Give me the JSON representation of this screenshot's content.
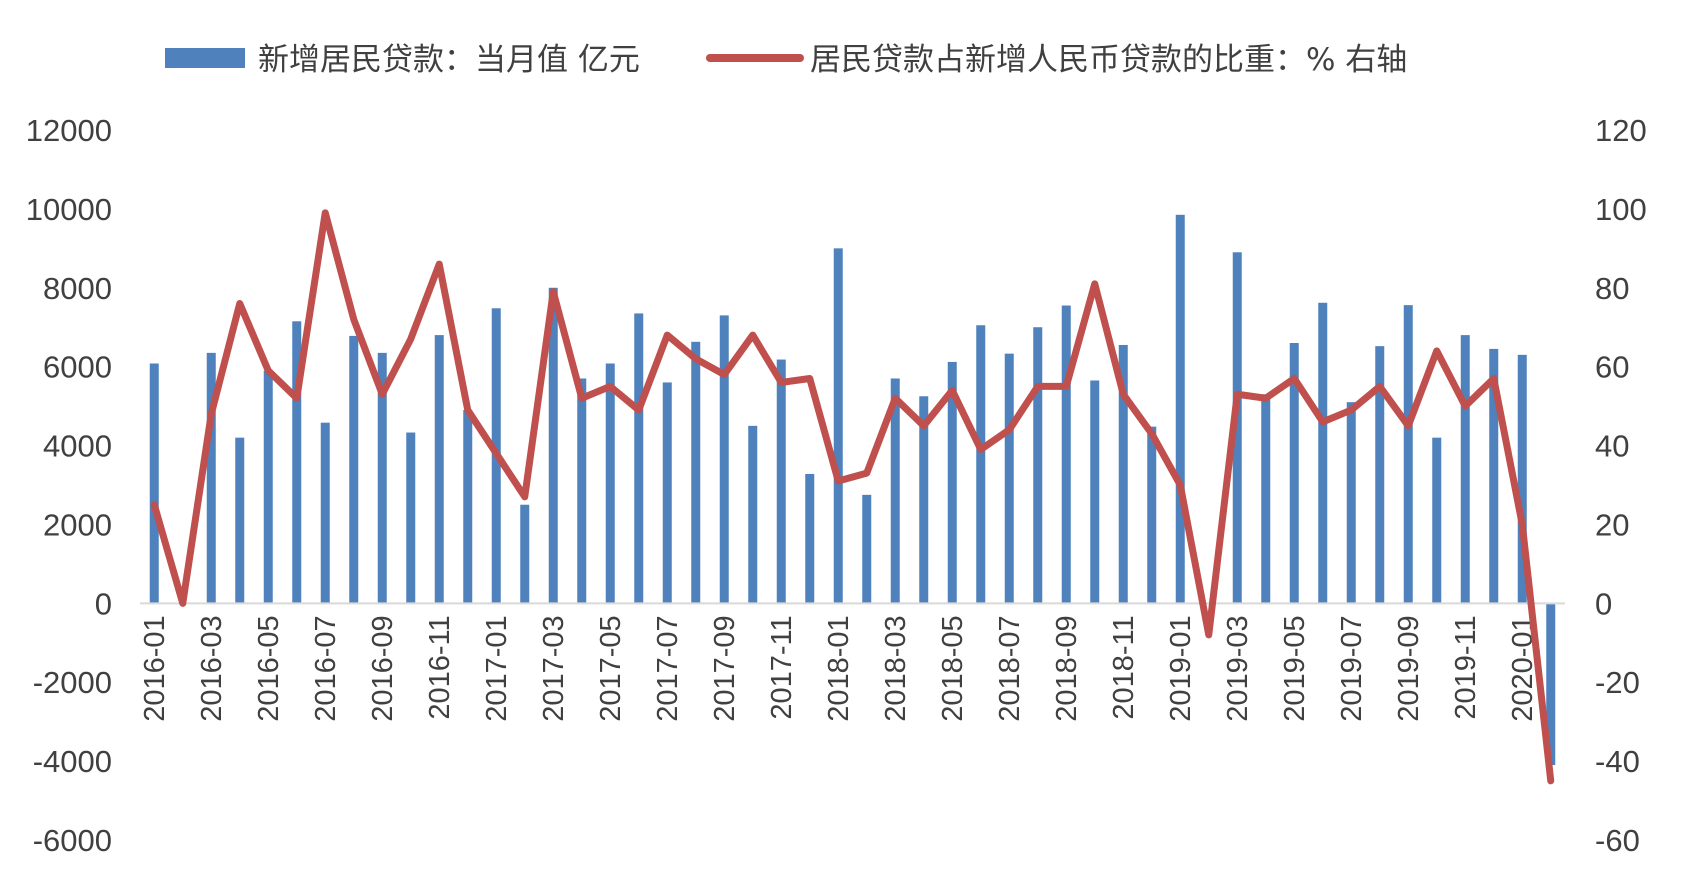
{
  "chart_data": {
    "type": "bar",
    "title": "",
    "xlabel": "",
    "ylabel": "",
    "ylim": [
      -6000,
      12000
    ],
    "y2lim": [
      -60,
      120
    ],
    "y_ticks": [
      "12000",
      "10000",
      "8000",
      "6000",
      "4000",
      "2000",
      "0",
      "-2000",
      "-4000",
      "-6000"
    ],
    "y2_ticks": [
      "120",
      "100",
      "80",
      "60",
      "40",
      "20",
      "0",
      "-20",
      "-40",
      "-60"
    ],
    "legend_position": "top",
    "grid": false,
    "categories": [
      "2016-01",
      "2016-02",
      "2016-03",
      "2016-04",
      "2016-05",
      "2016-06",
      "2016-07",
      "2016-08",
      "2016-09",
      "2016-10",
      "2016-11",
      "2016-12",
      "2017-01",
      "2017-02",
      "2017-03",
      "2017-04",
      "2017-05",
      "2017-06",
      "2017-07",
      "2017-08",
      "2017-09",
      "2017-10",
      "2017-11",
      "2017-12",
      "2018-01",
      "2018-02",
      "2018-03",
      "2018-04",
      "2018-05",
      "2018-06",
      "2018-07",
      "2018-08",
      "2018-09",
      "2018-10",
      "2018-11",
      "2018-12",
      "2019-01",
      "2019-02",
      "2019-03",
      "2019-04",
      "2019-05",
      "2019-06",
      "2019-07",
      "2019-08",
      "2019-09",
      "2019-10",
      "2019-11",
      "2019-12",
      "2020-01",
      "2020-02"
    ],
    "x_tick_labels": [
      "2016-01",
      "2016-03",
      "2016-05",
      "2016-07",
      "2016-09",
      "2016-11",
      "2017-01",
      "2017-03",
      "2017-05",
      "2017-07",
      "2017-09",
      "2017-11",
      "2018-01",
      "2018-03",
      "2018-05",
      "2018-07",
      "2018-09",
      "2018-11",
      "2019-01",
      "2019-03",
      "2019-05",
      "2019-07",
      "2019-09",
      "2019-11",
      "2020-01"
    ],
    "series": [
      {
        "name": "新增居民贷款：当月值 亿元",
        "type": "bar",
        "axis": "left",
        "color": "#4F81BD",
        "values": [
          6080,
          0,
          6350,
          4200,
          5900,
          7150,
          4580,
          6780,
          6350,
          4330,
          6800,
          4900,
          7480,
          2500,
          8000,
          5700,
          6080,
          7350,
          5600,
          6630,
          7300,
          4500,
          6180,
          3280,
          9000,
          2750,
          5700,
          5250,
          6120,
          7050,
          6330,
          7000,
          7550,
          5650,
          6550,
          4480,
          9850,
          0,
          8900,
          5300,
          6600,
          7620,
          5100,
          6520,
          7560,
          4200,
          6800,
          6450,
          6300,
          -4100
        ]
      },
      {
        "name": "居民贷款占新增人民币贷款的比重：% 右轴",
        "type": "line",
        "axis": "right",
        "color": "#C0504D",
        "values": [
          25,
          0,
          48,
          76,
          59,
          52,
          99,
          72,
          53,
          67,
          86,
          49,
          38,
          27,
          79,
          52,
          55,
          49,
          68,
          62,
          58,
          68,
          56,
          57,
          31,
          33,
          52,
          45,
          54,
          39,
          44,
          55,
          55,
          81,
          53,
          43,
          30,
          -8,
          53,
          52,
          57,
          46,
          49,
          55,
          45,
          64,
          50,
          57,
          20,
          -45
        ]
      }
    ]
  }
}
